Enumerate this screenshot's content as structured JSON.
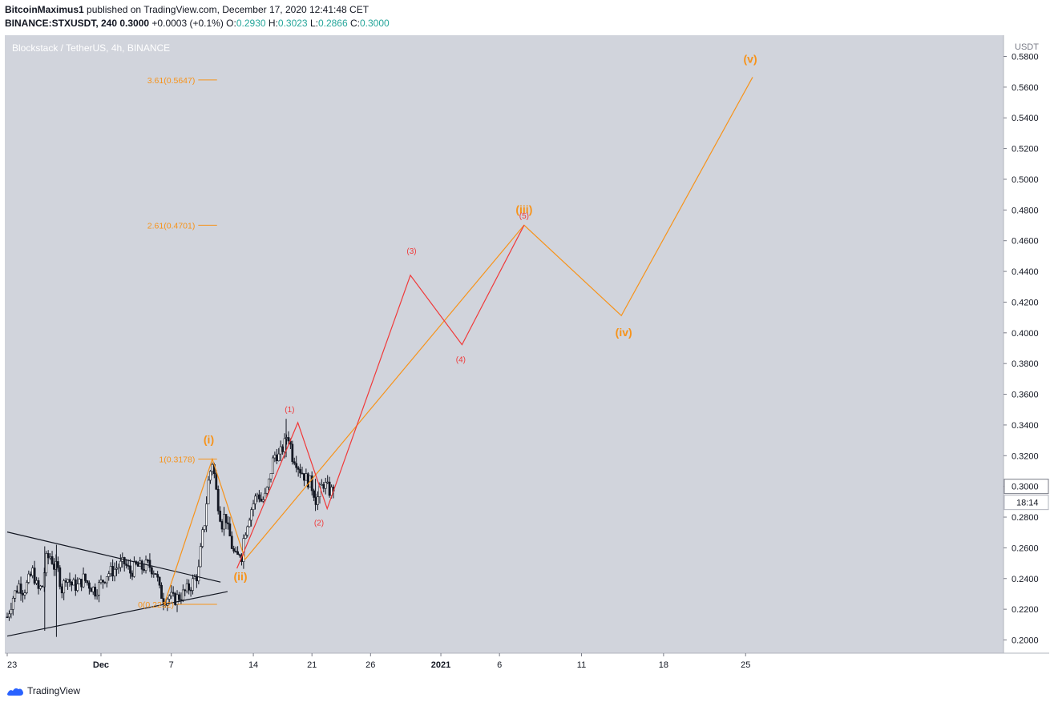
{
  "header": {
    "author": "BitcoinMaximus1",
    "published": "published on TradingView.com, December 17, 2020 12:41:48 CET",
    "symbol": "BINANCE:STXUSDT, 240",
    "last": "0.3000",
    "change": "+0.0003 (+0.1%)",
    "o_label": "O:",
    "o": "0.2930",
    "h_label": "H:",
    "h": "0.3023",
    "l_label": "L:",
    "l": "0.2866",
    "c_label": "C:",
    "c": "0.3000"
  },
  "footer": {
    "brand": "TradingView"
  },
  "colors": {
    "background": "#d1d4dc",
    "orange": "#f7931a",
    "red": "#f03a3a",
    "candle": "#131722",
    "axis_bg": "#ffffff"
  },
  "chart_data": {
    "type": "line",
    "title": "Blockstack / TetherUS, 4h, BINANCE",
    "currency": "USDT",
    "ylim": [
      0.192,
      0.583
    ],
    "y_ticks": [
      0.58,
      0.56,
      0.54,
      0.52,
      0.5,
      0.48,
      0.46,
      0.44,
      0.42,
      0.4,
      0.38,
      0.36,
      0.34,
      0.32,
      0.3,
      0.28,
      0.26,
      0.24,
      0.22,
      0.2
    ],
    "y_tick_labels": [
      "0.5800",
      "0.5600",
      "0.5400",
      "0.5200",
      "0.5000",
      "0.4800",
      "0.4600",
      "0.4400",
      "0.4200",
      "0.4000",
      "0.3800",
      "0.3600",
      "0.3400",
      "0.3200",
      "0.3000",
      "0.2800",
      "0.2600",
      "0.2400",
      "0.2200",
      "0.2000"
    ],
    "x_unit": "days since Nov 23, 2020",
    "xlim": [
      0,
      83.5
    ],
    "x_ticks": [
      0,
      8,
      14,
      21,
      26,
      31,
      37,
      42,
      49,
      56,
      63
    ],
    "x_tick_labels": [
      "23",
      "Dec",
      "7",
      "14",
      "21",
      "26",
      "2021",
      "6",
      "11",
      "18",
      "25"
    ],
    "last_price_label": "0.3000",
    "countdown_label": "18:14",
    "series": [
      {
        "name": "orange-wave",
        "color": "#f7931a",
        "points": [
          [
            13.4,
            0.2232
          ],
          [
            17.5,
            0.3178
          ],
          [
            20.3,
            0.2525
          ],
          [
            44.1,
            0.4701
          ],
          [
            52.4,
            0.4112
          ],
          [
            63.6,
            0.5665
          ]
        ]
      },
      {
        "name": "red-wave",
        "color": "#f03a3a",
        "points": [
          [
            19.6,
            0.2466
          ],
          [
            24.8,
            0.3415
          ],
          [
            27.3,
            0.2855
          ],
          [
            34.4,
            0.4375
          ],
          [
            38.8,
            0.3923
          ],
          [
            44.1,
            0.4701
          ]
        ]
      }
    ],
    "wave_labels": [
      {
        "text": "(i)",
        "color": "orange",
        "x": 17.2,
        "y": 0.33
      },
      {
        "text": "(ii)",
        "color": "orange",
        "x": 19.9,
        "y": 0.241
      },
      {
        "text": "(iii)",
        "color": "orange",
        "x": 44.1,
        "y": 0.48
      },
      {
        "text": "(iv)",
        "color": "orange",
        "x": 52.6,
        "y": 0.4
      },
      {
        "text": "(v)",
        "color": "orange",
        "x": 63.4,
        "y": 0.578
      },
      {
        "text": "(1)",
        "color": "red",
        "x": 24.1,
        "y": 0.3505
      },
      {
        "text": "(2)",
        "color": "red",
        "x": 26.6,
        "y": 0.2765
      },
      {
        "text": "(3)",
        "color": "red",
        "x": 34.5,
        "y": 0.4535
      },
      {
        "text": "(4)",
        "color": "red",
        "x": 38.7,
        "y": 0.383
      },
      {
        "text": "(5)",
        "color": "red",
        "x": 44.1,
        "y": 0.4765
      }
    ],
    "fib_levels": [
      {
        "label": "3.61(0.5647)",
        "value": 0.5647,
        "x0": 16.3,
        "x1": 17.9
      },
      {
        "label": "2.61(0.4701)",
        "value": 0.4701,
        "x0": 16.3,
        "x1": 17.9
      },
      {
        "label": "1(0.3178)",
        "value": 0.3178,
        "x0": 16.3,
        "x1": 17.9
      },
      {
        "label": "0(0.2232)",
        "value": 0.2232,
        "x0": 14.5,
        "x1": 17.9
      }
    ],
    "trendlines": [
      {
        "name": "upper-trendline",
        "points": [
          [
            0,
            0.2703
          ],
          [
            18.2,
            0.2377
          ]
        ]
      },
      {
        "name": "lower-trendline",
        "points": [
          [
            0,
            0.2025
          ],
          [
            18.8,
            0.2315
          ]
        ]
      }
    ],
    "candle_path": [
      [
        0.0,
        0.215
      ],
      [
        0.5,
        0.228
      ],
      [
        1.0,
        0.236
      ],
      [
        1.4,
        0.232
      ],
      [
        1.8,
        0.238
      ],
      [
        2.2,
        0.245
      ],
      [
        2.6,
        0.232
      ],
      [
        3.0,
        0.235
      ],
      [
        3.3,
        0.252
      ],
      [
        3.7,
        0.255
      ],
      [
        4.0,
        0.248
      ],
      [
        4.3,
        0.246
      ],
      [
        4.7,
        0.232
      ],
      [
        5.0,
        0.242
      ],
      [
        5.5,
        0.236
      ],
      [
        6.0,
        0.235
      ],
      [
        6.5,
        0.24
      ],
      [
        7.0,
        0.236
      ],
      [
        7.5,
        0.232
      ],
      [
        8.0,
        0.237
      ],
      [
        8.5,
        0.243
      ],
      [
        9.0,
        0.245
      ],
      [
        9.5,
        0.248
      ],
      [
        10.0,
        0.25
      ],
      [
        10.5,
        0.244
      ],
      [
        11.0,
        0.248
      ],
      [
        11.5,
        0.247
      ],
      [
        12.0,
        0.249
      ],
      [
        12.3,
        0.247
      ],
      [
        12.7,
        0.244
      ],
      [
        13.0,
        0.232
      ],
      [
        13.4,
        0.226
      ],
      [
        13.8,
        0.229
      ],
      [
        14.2,
        0.226
      ],
      [
        14.6,
        0.228
      ],
      [
        15.0,
        0.23
      ],
      [
        15.4,
        0.233
      ],
      [
        15.7,
        0.236
      ],
      [
        16.0,
        0.24
      ],
      [
        16.3,
        0.243
      ],
      [
        16.6,
        0.265
      ],
      [
        16.9,
        0.28
      ],
      [
        17.1,
        0.3
      ],
      [
        17.3,
        0.309
      ],
      [
        17.5,
        0.316
      ],
      [
        17.7,
        0.306
      ],
      [
        17.9,
        0.292
      ],
      [
        18.1,
        0.285
      ],
      [
        18.3,
        0.275
      ],
      [
        18.6,
        0.283
      ],
      [
        18.8,
        0.272
      ],
      [
        19.0,
        0.267
      ],
      [
        19.2,
        0.26
      ],
      [
        19.4,
        0.255
      ],
      [
        19.6,
        0.252
      ],
      [
        19.8,
        0.258
      ],
      [
        20.0,
        0.255
      ],
      [
        20.2,
        0.268
      ],
      [
        20.5,
        0.277
      ],
      [
        20.8,
        0.285
      ],
      [
        21.1,
        0.291
      ],
      [
        21.4,
        0.296
      ],
      [
        21.7,
        0.29
      ],
      [
        22.0,
        0.293
      ],
      [
        22.3,
        0.301
      ],
      [
        22.6,
        0.315
      ],
      [
        22.9,
        0.322
      ],
      [
        23.2,
        0.319
      ],
      [
        23.5,
        0.325
      ],
      [
        23.7,
        0.328
      ],
      [
        23.9,
        0.335
      ],
      [
        24.1,
        0.33
      ],
      [
        24.3,
        0.32
      ],
      [
        24.6,
        0.318
      ],
      [
        24.9,
        0.312
      ],
      [
        25.2,
        0.309
      ],
      [
        25.5,
        0.305
      ],
      [
        25.8,
        0.303
      ],
      [
        26.1,
        0.298
      ],
      [
        26.4,
        0.29
      ],
      [
        26.7,
        0.298
      ],
      [
        27.0,
        0.302
      ],
      [
        27.3,
        0.299
      ],
      [
        27.6,
        0.296
      ],
      [
        27.9,
        0.3
      ]
    ],
    "extreme_wicks": [
      [
        4.2,
        0.262,
        0.202
      ],
      [
        3.2,
        0.261,
        0.206
      ],
      [
        23.8,
        0.344,
        0.319
      ],
      [
        26.3,
        0.305,
        0.284
      ]
    ]
  }
}
